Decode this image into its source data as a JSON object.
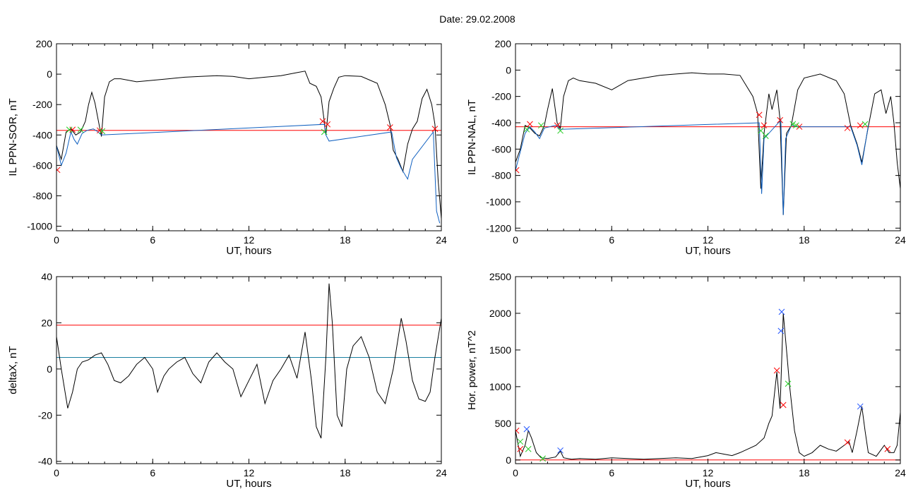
{
  "figure": {
    "title": "Date:  29.02.2008"
  },
  "chart_data": [
    {
      "type": "line",
      "xlabel": "UT, hours",
      "ylabel": "IL PPN-SOR, nT",
      "xlim": [
        0,
        24
      ],
      "ylim": [
        -1030,
        200
      ],
      "xticks": [
        0,
        6,
        12,
        18,
        24
      ],
      "yticks": [
        -1000,
        -800,
        -600,
        -400,
        -200,
        0,
        200
      ],
      "grid": false,
      "series": [
        {
          "color": "#000000",
          "x": [
            0,
            0.3,
            0.6,
            0.9,
            1.2,
            1.5,
            1.8,
            2.0,
            2.2,
            2.4,
            2.6,
            2.8,
            3.0,
            3.3,
            3.6,
            4.0,
            5.0,
            6.0,
            7.0,
            8.0,
            9.0,
            10.0,
            11.0,
            12.0,
            13.0,
            14.0,
            15.0,
            15.5,
            15.8,
            16.2,
            16.5,
            16.7,
            16.8,
            17.0,
            17.3,
            17.6,
            18.0,
            19.0,
            20.0,
            20.5,
            20.8,
            21.0,
            21.3,
            21.6,
            21.9,
            22.2,
            22.5,
            22.8,
            23.1,
            23.4,
            23.6,
            23.8,
            24.0
          ],
          "y": [
            -470,
            -560,
            -380,
            -360,
            -400,
            -380,
            -310,
            -200,
            -120,
            -190,
            -300,
            -410,
            -150,
            -50,
            -30,
            -30,
            -50,
            -40,
            -30,
            -20,
            -15,
            -10,
            -15,
            -30,
            -20,
            -10,
            10,
            20,
            -60,
            -80,
            -150,
            -310,
            -400,
            -180,
            -90,
            -20,
            -10,
            -15,
            -60,
            -200,
            -330,
            -500,
            -560,
            -640,
            -460,
            -360,
            -310,
            -160,
            -100,
            -200,
            -330,
            -700,
            -950
          ]
        },
        {
          "color": "#1060c0",
          "x": [
            0,
            0.3,
            0.6,
            0.9,
            1.1,
            1.3,
            1.6,
            1.9,
            2.3,
            2.6,
            2.8,
            16.7,
            16.8,
            17.0,
            20.9,
            21.2,
            21.5,
            21.9,
            22.2,
            23.5,
            23.7,
            23.9
          ],
          "y": [
            -470,
            -600,
            -520,
            -380,
            -430,
            -460,
            -390,
            -370,
            -360,
            -380,
            -400,
            -330,
            -400,
            -440,
            -380,
            -550,
            -620,
            -690,
            -560,
            -380,
            -900,
            -980
          ]
        }
      ],
      "threshold": {
        "value": -370,
        "color": "#ff0000"
      },
      "markers_red": [
        [
          0.05,
          -630
        ],
        [
          1.0,
          -365
        ],
        [
          2.7,
          -370
        ],
        [
          16.6,
          -310
        ],
        [
          16.9,
          -330
        ],
        [
          20.8,
          -350
        ],
        [
          23.6,
          -360
        ]
      ],
      "markers_green": [
        [
          0.8,
          -365
        ],
        [
          1.5,
          -365
        ],
        [
          2.85,
          -375
        ],
        [
          16.7,
          -380
        ]
      ]
    },
    {
      "type": "line",
      "xlabel": "UT, hours",
      "ylabel": "IL PPN-NAL, nT",
      "xlim": [
        0,
        24
      ],
      "ylim": [
        -1220,
        200
      ],
      "xticks": [
        0,
        6,
        12,
        18,
        24
      ],
      "yticks": [
        -1200,
        -1000,
        -800,
        -600,
        -400,
        -200,
        0,
        200
      ],
      "grid": false,
      "series": [
        {
          "color": "#000000",
          "x": [
            0,
            0.3,
            0.6,
            0.9,
            1.2,
            1.5,
            1.8,
            2.0,
            2.3,
            2.6,
            2.8,
            3.0,
            3.3,
            3.6,
            4.0,
            5.0,
            6.0,
            7.0,
            8.0,
            9.0,
            10.0,
            11.0,
            12.0,
            13.0,
            14.0,
            14.8,
            15.1,
            15.3,
            15.5,
            15.8,
            16.0,
            16.3,
            16.5,
            16.7,
            16.9,
            17.2,
            17.6,
            18.0,
            19.0,
            20.0,
            20.5,
            20.9,
            21.3,
            21.6,
            22.0,
            22.4,
            22.8,
            23.1,
            23.4,
            23.6,
            23.8,
            24.0
          ],
          "y": [
            -700,
            -600,
            -420,
            -440,
            -480,
            -500,
            -420,
            -300,
            -140,
            -400,
            -440,
            -200,
            -80,
            -60,
            -80,
            -100,
            -150,
            -80,
            -60,
            -40,
            -30,
            -20,
            -30,
            -30,
            -40,
            -200,
            -330,
            -900,
            -480,
            -180,
            -300,
            -150,
            -380,
            -1100,
            -480,
            -420,
            -150,
            -60,
            -30,
            -80,
            -180,
            -420,
            -560,
            -700,
            -430,
            -180,
            -150,
            -330,
            -200,
            -400,
            -700,
            -900
          ]
        },
        {
          "color": "#1060c0",
          "x": [
            0,
            0.3,
            0.6,
            0.9,
            1.2,
            1.5,
            1.8,
            2.5,
            2.8,
            15.2,
            15.35,
            15.5,
            16.55,
            16.7,
            16.85,
            17.2,
            17.6,
            20.9,
            21.3,
            21.6,
            22.0
          ],
          "y": [
            -760,
            -620,
            -480,
            -430,
            -470,
            -520,
            -440,
            -420,
            -450,
            -400,
            -940,
            -520,
            -380,
            -1100,
            -520,
            -420,
            -430,
            -430,
            -570,
            -720,
            -420
          ]
        }
      ],
      "threshold": {
        "value": -430,
        "color": "#ff0000"
      },
      "markers_red": [
        [
          0.05,
          -760
        ],
        [
          0.9,
          -410
        ],
        [
          2.6,
          -420
        ],
        [
          15.2,
          -340
        ],
        [
          15.5,
          -420
        ],
        [
          16.5,
          -380
        ],
        [
          17.7,
          -430
        ],
        [
          20.7,
          -440
        ],
        [
          21.5,
          -420
        ]
      ],
      "markers_green": [
        [
          0.7,
          -450
        ],
        [
          1.6,
          -420
        ],
        [
          2.8,
          -460
        ],
        [
          15.3,
          -460
        ],
        [
          15.6,
          -500
        ],
        [
          17.3,
          -410
        ],
        [
          17.5,
          -420
        ],
        [
          21.8,
          -410
        ]
      ]
    },
    {
      "type": "line",
      "xlabel": "UT, hours",
      "ylabel": "deltaX, nT",
      "xlim": [
        0,
        24
      ],
      "ylim": [
        -41,
        40
      ],
      "xticks": [
        0,
        6,
        12,
        18,
        24
      ],
      "yticks": [
        -40,
        -20,
        0,
        20,
        40
      ],
      "grid": false,
      "series": [
        {
          "color": "#000000",
          "x": [
            0,
            0.3,
            0.7,
            1.0,
            1.3,
            1.6,
            2.0,
            2.4,
            2.8,
            3.2,
            3.6,
            4.0,
            4.5,
            5.0,
            5.5,
            6.0,
            6.3,
            6.7,
            7.0,
            7.5,
            8.0,
            8.5,
            9.0,
            9.5,
            10.0,
            10.5,
            11.0,
            11.5,
            12.0,
            12.5,
            13.0,
            13.5,
            14.0,
            14.5,
            15.0,
            15.5,
            15.9,
            16.2,
            16.5,
            16.8,
            17.0,
            17.2,
            17.5,
            17.8,
            18.1,
            18.5,
            19.0,
            19.5,
            20.0,
            20.5,
            21.0,
            21.5,
            21.8,
            22.2,
            22.6,
            23.0,
            23.3,
            23.6,
            24.0
          ],
          "y": [
            14,
            0,
            -17,
            -10,
            0,
            3,
            4,
            6,
            7,
            2,
            -5,
            -6,
            -3,
            2,
            5,
            0,
            -10,
            -3,
            0,
            3,
            5,
            -2,
            -6,
            3,
            7,
            3,
            0,
            -12,
            -5,
            2,
            -15,
            -5,
            0,
            6,
            -4,
            16,
            -5,
            -25,
            -30,
            5,
            37,
            20,
            -20,
            -25,
            0,
            10,
            14,
            5,
            -10,
            -15,
            0,
            22,
            12,
            -5,
            -13,
            -14,
            -10,
            5,
            22
          ]
        }
      ],
      "threshold": {
        "value": 19,
        "color": "#ff0000"
      },
      "baseline": {
        "value": 5,
        "color": "#1a7fa0"
      }
    },
    {
      "type": "line",
      "xlabel": "UT, hours",
      "ylabel": "Hor. power, nT^2",
      "xlim": [
        0,
        24
      ],
      "ylim": [
        -50,
        2500
      ],
      "xticks": [
        0,
        6,
        12,
        18,
        24
      ],
      "yticks": [
        0,
        500,
        1000,
        1500,
        2000,
        2500
      ],
      "grid": false,
      "series": [
        {
          "color": "#000000",
          "x": [
            0,
            0.3,
            0.6,
            0.8,
            1.0,
            1.3,
            1.6,
            2.0,
            2.5,
            2.8,
            3.0,
            3.5,
            4.0,
            5.0,
            6.0,
            7.0,
            8.0,
            9.0,
            10.0,
            11.0,
            12.0,
            12.5,
            13.0,
            13.5,
            14.0,
            14.5,
            15.0,
            15.5,
            15.8,
            16.0,
            16.3,
            16.5,
            16.7,
            16.9,
            17.1,
            17.4,
            17.7,
            18.0,
            18.5,
            19.0,
            19.5,
            20.0,
            20.5,
            20.8,
            21.0,
            21.3,
            21.6,
            21.8,
            22.0,
            22.5,
            23.0,
            23.3,
            23.6,
            23.8,
            24.0
          ],
          "y": [
            400,
            50,
            200,
            400,
            300,
            100,
            30,
            20,
            40,
            120,
            30,
            10,
            20,
            10,
            30,
            20,
            10,
            20,
            30,
            20,
            60,
            100,
            80,
            60,
            100,
            150,
            200,
            300,
            500,
            600,
            1200,
            700,
            2000,
            1500,
            1000,
            400,
            100,
            50,
            100,
            200,
            150,
            120,
            200,
            250,
            100,
            400,
            730,
            400,
            100,
            50,
            200,
            100,
            100,
            200,
            650
          ]
        }
      ],
      "threshold": {
        "value": 0,
        "color": "#ff0000"
      },
      "markers_red": [
        [
          0.05,
          400
        ],
        [
          0.3,
          150
        ],
        [
          16.3,
          1220
        ],
        [
          16.7,
          750
        ],
        [
          20.7,
          240
        ],
        [
          23.2,
          150
        ]
      ],
      "markers_blue": [
        [
          0.7,
          420
        ],
        [
          2.8,
          130
        ],
        [
          16.6,
          2020
        ],
        [
          16.55,
          1760
        ],
        [
          21.5,
          730
        ]
      ],
      "markers_green": [
        [
          0.3,
          250
        ],
        [
          0.8,
          150
        ],
        [
          1.7,
          20
        ],
        [
          17.0,
          1040
        ]
      ]
    }
  ]
}
